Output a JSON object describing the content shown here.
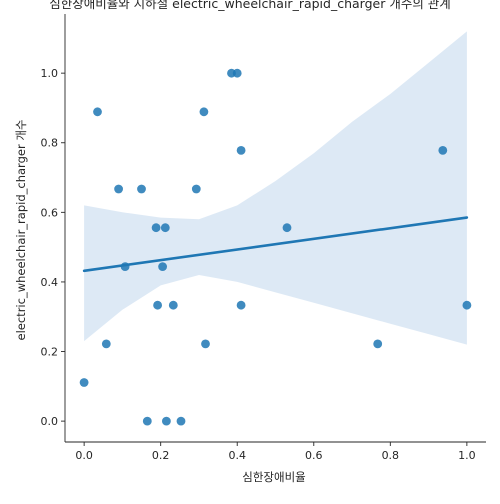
{
  "chart_data": {
    "type": "scatter",
    "title": "심한장애비율와 지하철 electric_wheelchair_rapid_charger 개수의 관계",
    "xlabel": "심한장애비율",
    "ylabel": "electric_wheelchair_rapid_charger 개수",
    "xlim": [
      -0.05,
      1.05
    ],
    "ylim": [
      -0.06,
      1.17
    ],
    "xticks": [
      "0.0",
      "0.2",
      "0.4",
      "0.6",
      "0.8",
      "1.0"
    ],
    "yticks": [
      "0.0",
      "0.2",
      "0.4",
      "0.6",
      "0.8",
      "1.0"
    ],
    "grid": false,
    "colors": {
      "points": "#1f77b4",
      "regression": "#1f77b4",
      "band": "#c6dbef"
    },
    "points": [
      {
        "x": 0.0,
        "y": 0.111
      },
      {
        "x": 0.035,
        "y": 0.889
      },
      {
        "x": 0.058,
        "y": 0.222
      },
      {
        "x": 0.09,
        "y": 0.667
      },
      {
        "x": 0.107,
        "y": 0.444
      },
      {
        "x": 0.15,
        "y": 0.667
      },
      {
        "x": 0.165,
        "y": 0.0
      },
      {
        "x": 0.188,
        "y": 0.556
      },
      {
        "x": 0.192,
        "y": 0.333
      },
      {
        "x": 0.205,
        "y": 0.444
      },
      {
        "x": 0.212,
        "y": 0.556
      },
      {
        "x": 0.215,
        "y": 0.0
      },
      {
        "x": 0.233,
        "y": 0.333
      },
      {
        "x": 0.253,
        "y": 0.0
      },
      {
        "x": 0.293,
        "y": 0.667
      },
      {
        "x": 0.313,
        "y": 0.889
      },
      {
        "x": 0.317,
        "y": 0.222
      },
      {
        "x": 0.385,
        "y": 1.0
      },
      {
        "x": 0.4,
        "y": 1.0
      },
      {
        "x": 0.41,
        "y": 0.778
      },
      {
        "x": 0.41,
        "y": 0.333
      },
      {
        "x": 0.53,
        "y": 0.556
      },
      {
        "x": 0.767,
        "y": 0.222
      },
      {
        "x": 0.937,
        "y": 0.778
      },
      {
        "x": 1.0,
        "y": 0.333
      }
    ],
    "regression": {
      "x": [
        0.0,
        1.0
      ],
      "y": [
        0.432,
        0.585
      ]
    },
    "confidence_band": {
      "x": [
        0.0,
        0.1,
        0.2,
        0.3,
        0.4,
        0.5,
        0.6,
        0.7,
        0.8,
        0.9,
        1.0
      ],
      "upper": [
        0.62,
        0.6,
        0.585,
        0.58,
        0.62,
        0.69,
        0.77,
        0.86,
        0.94,
        1.03,
        1.12
      ],
      "lower": [
        0.23,
        0.32,
        0.39,
        0.42,
        0.4,
        0.37,
        0.34,
        0.31,
        0.28,
        0.25,
        0.22
      ]
    }
  }
}
